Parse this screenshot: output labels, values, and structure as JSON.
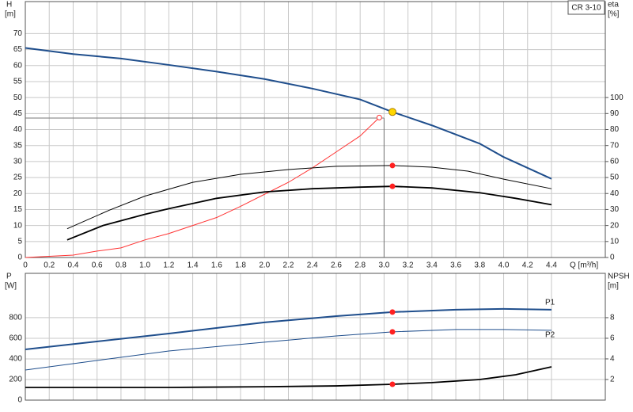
{
  "chart_data": [
    {
      "type": "line",
      "title": "CR 3-10",
      "ylabel": "H",
      "yunit": "[m]",
      "y2label": "eta",
      "y2unit": "[%]",
      "xlabel": "Q [m³/h]",
      "xlim": [
        0,
        4.85
      ],
      "ylim": [
        0,
        80
      ],
      "y2lim": [
        0,
        160
      ],
      "xticks": [
        0,
        0.2,
        0.4,
        0.6,
        0.8,
        {
          "value": 1,
          "label": "1.0"
        },
        1.2,
        1.4,
        1.6,
        1.8,
        {
          "value": 2,
          "label": "2.0"
        },
        2.2,
        2.4,
        2.6,
        2.8,
        {
          "value": 3,
          "label": "3.0"
        },
        3.2,
        3.4,
        3.6,
        3.8,
        {
          "value": 4,
          "label": "4.0"
        },
        4.2,
        4.4
      ],
      "yticks": [
        0,
        5,
        10,
        15,
        20,
        25,
        30,
        35,
        40,
        45,
        50,
        55,
        60,
        65,
        70
      ],
      "y2ticks": [
        0,
        10,
        20,
        30,
        40,
        50,
        60,
        70,
        80,
        90,
        100
      ],
      "grid": true,
      "highlight_x": 3.07,
      "guide": {
        "x": 3.0,
        "y": 43.6
      },
      "series": [
        {
          "color": "#1f4e8c",
          "width": 2,
          "highlight_color": "#ffd700",
          "x": [
            0,
            0.4,
            0.8,
            1.2,
            1.6,
            2.0,
            2.4,
            2.8,
            3.07,
            3.4,
            3.8,
            4.0,
            4.4
          ],
          "values": [
            65.5,
            63.6,
            62.2,
            60.2,
            58.1,
            55.8,
            52.8,
            49.4,
            45.5,
            41.3,
            35.6,
            31.4,
            24.6
          ]
        },
        {
          "color": "#ff3333",
          "width": 1,
          "axis": "y2",
          "end_marker": "open",
          "x": [
            0,
            0.4,
            0.6,
            0.8,
            1.0,
            1.2,
            1.4,
            1.6,
            1.8,
            2.0,
            2.2,
            2.4,
            2.6,
            2.8,
            2.96
          ],
          "values": [
            0,
            1.5,
            4,
            6,
            11,
            15,
            20,
            25,
            32,
            39.5,
            47,
            56,
            66,
            76,
            87.5
          ]
        },
        {
          "color": "#000000",
          "width": 1,
          "axis": "y2",
          "highlight_color": "#ff2020",
          "x": [
            0.35,
            0.7,
            1.0,
            1.4,
            1.8,
            2.2,
            2.6,
            3.07,
            3.4,
            3.7,
            4.0,
            4.4
          ],
          "values": [
            18,
            29.5,
            38.4,
            47,
            52,
            55,
            57,
            57.5,
            56.5,
            54,
            49,
            43
          ]
        },
        {
          "color": "#000000",
          "width": 1.8,
          "axis": "y2",
          "highlight_color": "#ff2020",
          "x": [
            0.35,
            0.65,
            1.0,
            1.2,
            1.6,
            2.0,
            2.4,
            2.8,
            3.07,
            3.4,
            3.8,
            4.1,
            4.4
          ],
          "values": [
            11,
            20,
            27,
            30.5,
            37,
            41,
            43,
            44,
            44.5,
            43.5,
            40.5,
            37,
            33
          ]
        }
      ]
    },
    {
      "type": "line",
      "ylabel": "P",
      "yunit": "[W]",
      "y2label": "NPSH",
      "y2unit": "[m]",
      "xlim": [
        0,
        4.85
      ],
      "ylim": [
        0,
        1230
      ],
      "y2lim": [
        0,
        12.3
      ],
      "xticks": [
        0,
        0.2,
        0.4,
        0.6,
        0.8,
        1,
        1.2,
        1.4,
        1.6,
        1.8,
        2,
        2.2,
        2.4,
        2.6,
        2.8,
        3,
        3.2,
        3.4,
        3.6,
        3.8,
        4,
        4.2,
        4.4
      ],
      "yticks": [
        0,
        200,
        400,
        600,
        800
      ],
      "y2ticks": [
        2,
        4,
        6,
        8
      ],
      "grid": true,
      "highlight_x": 3.07,
      "series": [
        {
          "name": "P1",
          "color": "#1f4e8c",
          "width": 2,
          "highlight_color": "#ff2020",
          "x": [
            0,
            1.2,
            2.0,
            2.6,
            3.07,
            3.6,
            4.0,
            4.4
          ],
          "values": [
            492,
            646,
            754,
            815,
            854,
            877,
            885,
            877
          ]
        },
        {
          "name": "P2",
          "color": "#1f4e8c",
          "width": 1,
          "highlight_color": "#ff2020",
          "x": [
            0,
            1.2,
            2.0,
            2.6,
            3.07,
            3.6,
            4.0,
            4.4
          ],
          "values": [
            292,
            477,
            562,
            623,
            662,
            685,
            685,
            677
          ]
        },
        {
          "color": "#000000",
          "width": 1.8,
          "axis": "y2",
          "highlight_color": "#ff2020",
          "x": [
            0,
            1.2,
            2.0,
            2.6,
            3.07,
            3.4,
            3.8,
            4.1,
            4.4
          ],
          "values": [
            1.23,
            1.23,
            1.3,
            1.38,
            1.54,
            1.7,
            2.0,
            2.46,
            3.23
          ]
        }
      ]
    }
  ]
}
